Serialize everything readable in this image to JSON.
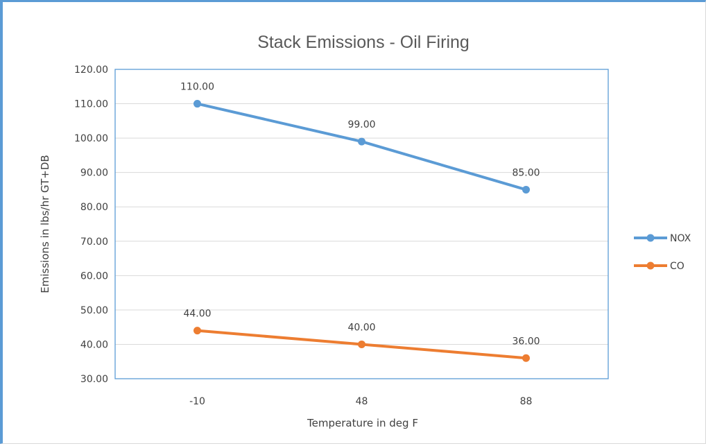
{
  "chart_data": {
    "type": "line",
    "title": "Stack Emissions - Oil Firing",
    "xlabel": "Temperature in deg F",
    "ylabel": "Emissions in lbs/hr GT+DB",
    "categories": [
      "-10",
      "48",
      "88"
    ],
    "ylim": [
      30,
      120
    ],
    "ytick_step": 10,
    "yticks": [
      "30.00",
      "40.00",
      "50.00",
      "60.00",
      "70.00",
      "80.00",
      "90.00",
      "100.00",
      "110.00",
      "120.00"
    ],
    "grid": true,
    "legend_position": "right",
    "series": [
      {
        "name": "NOX",
        "color": "#5b9bd5",
        "values": [
          110,
          99,
          85
        ],
        "labels": [
          "110.00",
          "99.00",
          "85.00"
        ]
      },
      {
        "name": "CO",
        "color": "#ed7d31",
        "values": [
          44,
          40,
          36
        ],
        "labels": [
          "44.00",
          "40.00",
          "36.00"
        ]
      }
    ]
  }
}
